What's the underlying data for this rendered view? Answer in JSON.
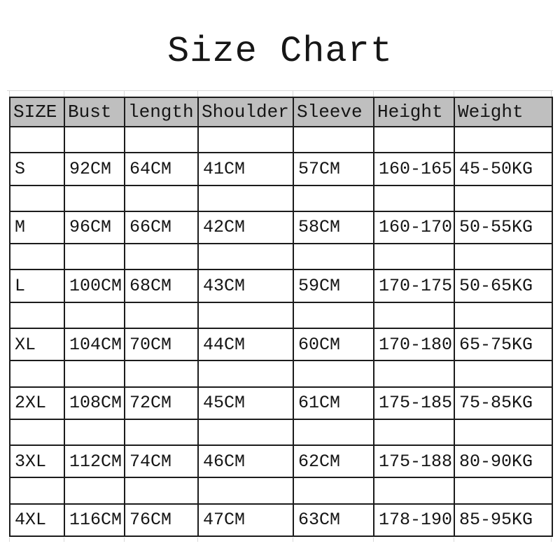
{
  "title": "Size Chart",
  "chart_data": {
    "type": "table",
    "title": "Size Chart",
    "columns": [
      "SIZE",
      "Bust",
      "length",
      "Shoulder",
      "Sleeve",
      "Height",
      "Weight"
    ],
    "rows": [
      [
        "S",
        "92CM",
        "64CM",
        "41CM",
        "57CM",
        "160-165",
        "45-50KG"
      ],
      [
        "M",
        "96CM",
        "66CM",
        "42CM",
        "58CM",
        "160-170",
        "50-55KG"
      ],
      [
        "L",
        "100CM",
        "68CM",
        "43CM",
        "59CM",
        "170-175",
        "50-65KG"
      ],
      [
        "XL",
        "104CM",
        "70CM",
        "44CM",
        "60CM",
        "170-180",
        "65-75KG"
      ],
      [
        "2XL",
        "108CM",
        "72CM",
        "45CM",
        "61CM",
        "175-185",
        "75-85KG"
      ],
      [
        "3XL",
        "112CM",
        "74CM",
        "46CM",
        "62CM",
        "175-188",
        "80-90KG"
      ],
      [
        "4XL",
        "116CM",
        "76CM",
        "47CM",
        "63CM",
        "178-190",
        "85-95KG"
      ]
    ]
  },
  "colors": {
    "background": "#ffffff",
    "header_bg": "#bfbfbf",
    "grid_border": "#1c1c1c",
    "text": "#151515",
    "faint_gridline": "#d9d9d9"
  }
}
